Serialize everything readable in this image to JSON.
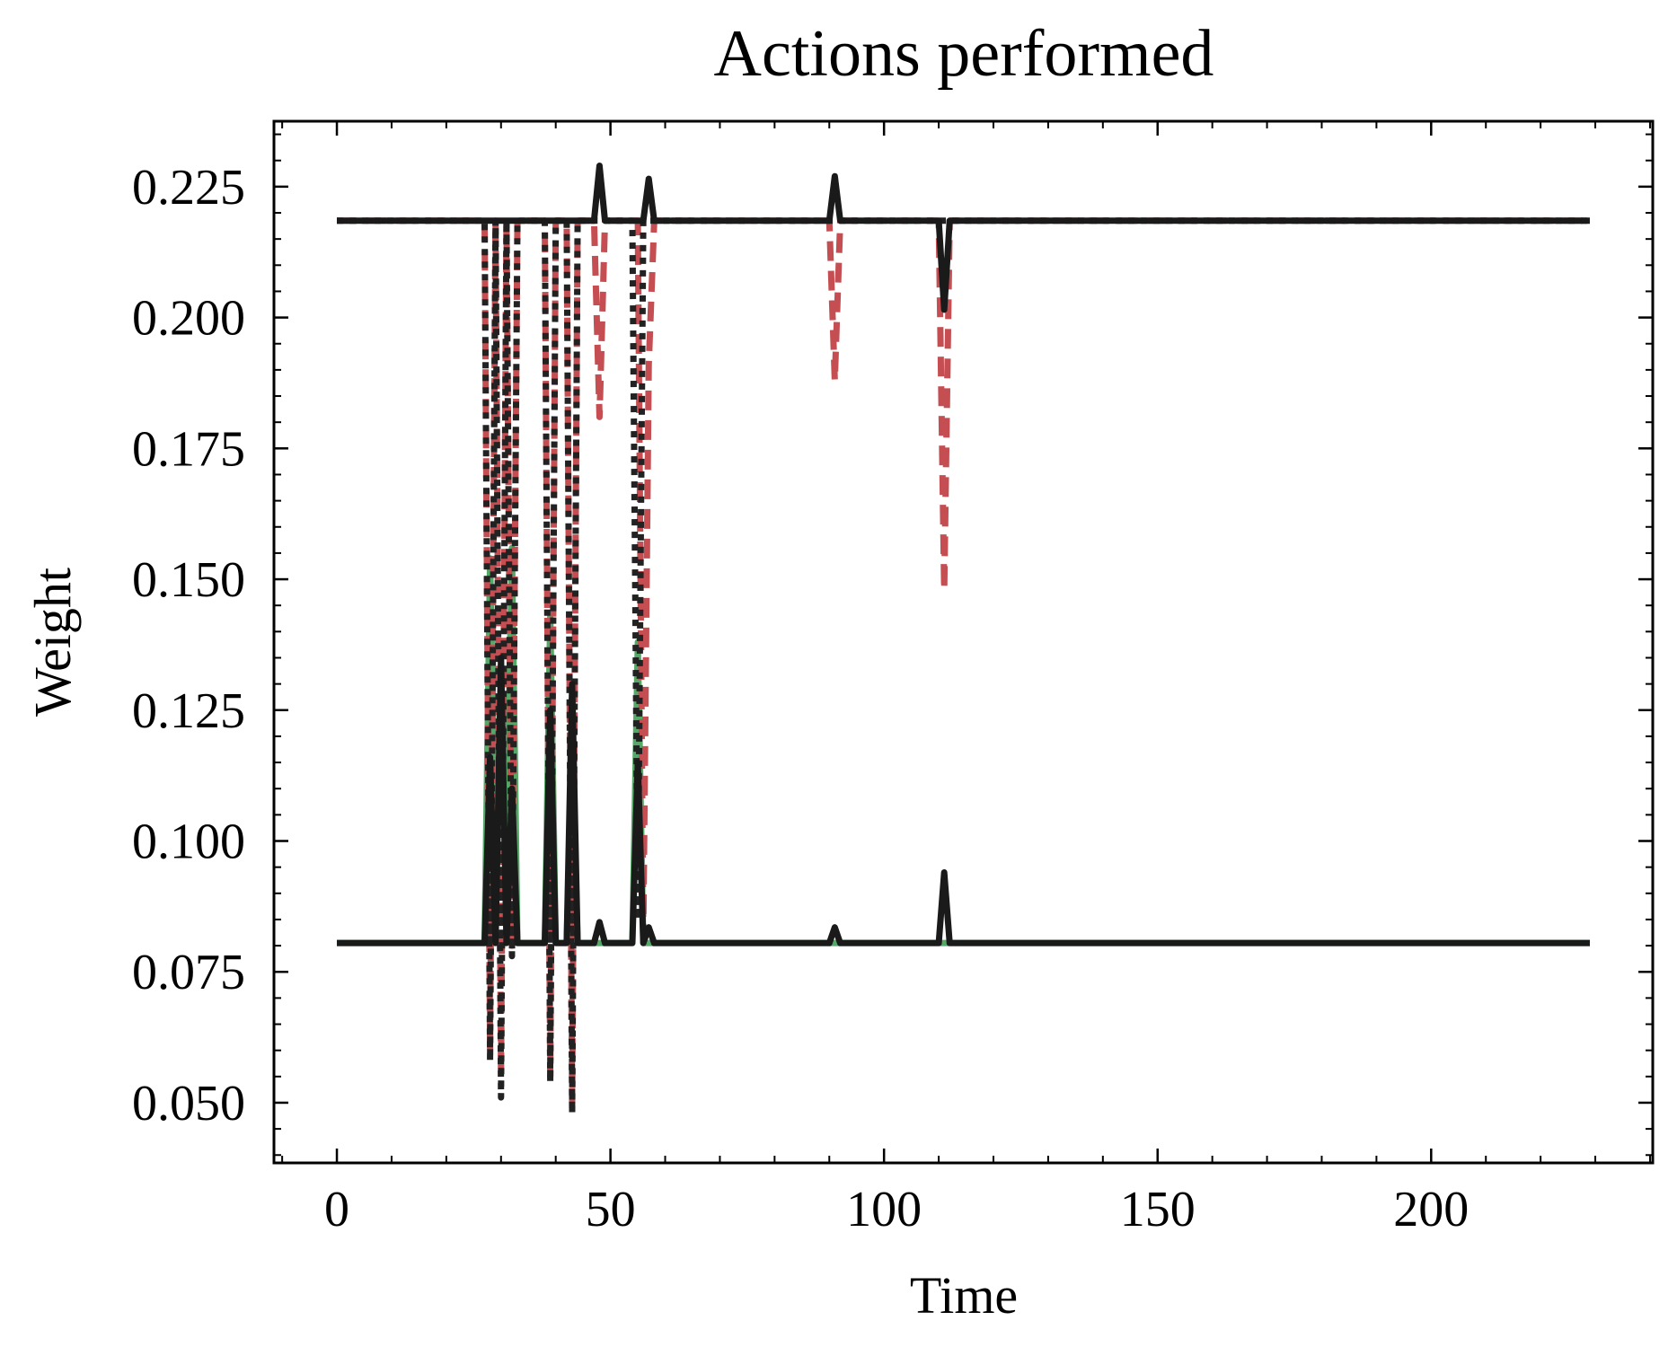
{
  "chart_data": {
    "type": "line",
    "title": "Actions performed",
    "xlabel": "Time",
    "ylabel": "Weight",
    "xlim": [
      -11.5,
      240.5
    ],
    "ylim": [
      0.0385,
      0.2375
    ],
    "xticks": [
      0,
      50,
      100,
      150,
      200
    ],
    "xtick_labels": [
      "0",
      "50",
      "100",
      "150",
      "200"
    ],
    "yticks": [
      0.05,
      0.075,
      0.1,
      0.125,
      0.15,
      0.175,
      0.2,
      0.225
    ],
    "ytick_labels": [
      "0.050",
      "0.075",
      "0.100",
      "0.125",
      "0.150",
      "0.175",
      "0.200",
      "0.225"
    ],
    "grid": false,
    "legend": "none",
    "series": [
      {
        "color": "#55a868",
        "style": "solid",
        "x": [
          0,
          27,
          28,
          29,
          30,
          31,
          32,
          33,
          38,
          39,
          40,
          42,
          43,
          44,
          54,
          55,
          56,
          57,
          229
        ],
        "y": [
          0.0805,
          0.0805,
          0.154,
          0.1,
          0.112,
          0.1,
          0.156,
          0.0805,
          0.0805,
          0.143,
          0.0805,
          0.0805,
          0.12,
          0.0805,
          0.0805,
          0.138,
          0.0805,
          0.0805,
          0.0805
        ]
      },
      {
        "color": "#c44e52",
        "style": "dashed",
        "x": [
          0,
          27,
          28,
          29,
          30,
          31,
          32,
          33,
          38,
          39,
          40,
          42,
          43,
          44,
          47,
          48,
          49,
          55,
          56,
          57,
          58,
          90,
          91,
          92,
          110,
          111,
          112,
          229
        ],
        "y": [
          0.2185,
          0.2185,
          0.06,
          0.2185,
          0.055,
          0.2185,
          0.08,
          0.2185,
          0.2185,
          0.055,
          0.2185,
          0.2185,
          0.05,
          0.2185,
          0.2185,
          0.181,
          0.2185,
          0.2185,
          0.082,
          0.191,
          0.2185,
          0.2185,
          0.188,
          0.2185,
          0.2185,
          0.148,
          0.2185,
          0.2185
        ]
      },
      {
        "color": "#222222",
        "style": "dotted",
        "x": [
          0,
          27,
          28,
          29,
          30,
          31,
          32,
          33,
          38,
          39,
          40,
          42,
          43,
          44,
          54,
          55,
          56,
          229
        ],
        "y": [
          0.2185,
          0.2185,
          0.058,
          0.2185,
          0.051,
          0.2185,
          0.078,
          0.2185,
          0.2185,
          0.054,
          0.2185,
          0.2185,
          0.048,
          0.2185,
          0.2185,
          0.085,
          0.2185,
          0.2185
        ]
      },
      {
        "color": "#1a1a1a",
        "style": "solid",
        "x": [
          0,
          27,
          28,
          29,
          30,
          31,
          32,
          33,
          38,
          39,
          40,
          42,
          43,
          44,
          47,
          48,
          49,
          54,
          55,
          56,
          57,
          58,
          90,
          91,
          92,
          110,
          111,
          112,
          229
        ],
        "y": [
          0.0805,
          0.0805,
          0.116,
          0.0805,
          0.135,
          0.0805,
          0.11,
          0.0805,
          0.0805,
          0.125,
          0.0805,
          0.0805,
          0.13,
          0.0805,
          0.0805,
          0.0845,
          0.0805,
          0.0805,
          0.115,
          0.0805,
          0.0835,
          0.0805,
          0.0805,
          0.0835,
          0.0805,
          0.0805,
          0.094,
          0.0805,
          0.0805
        ]
      },
      {
        "color": "#1a1a1a",
        "style": "solid",
        "x": [
          0,
          47,
          48,
          49,
          56,
          57,
          58,
          90,
          91,
          92,
          110,
          111,
          112,
          229
        ],
        "y": [
          0.2185,
          0.2185,
          0.229,
          0.2185,
          0.2185,
          0.2265,
          0.2185,
          0.2185,
          0.227,
          0.2185,
          0.2185,
          0.2015,
          0.2185,
          0.2185
        ]
      }
    ]
  }
}
